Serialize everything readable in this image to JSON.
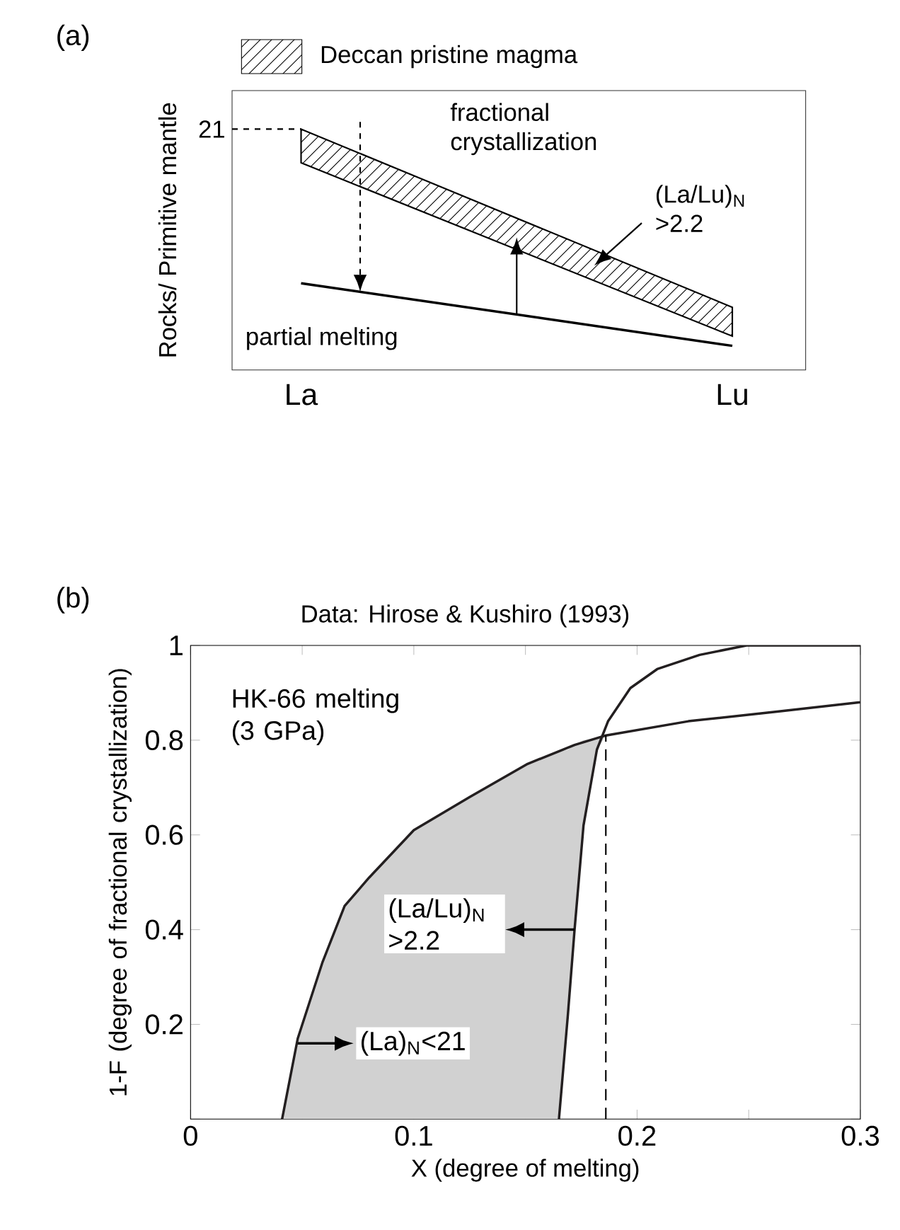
{
  "chart_data": [
    {
      "type": "other",
      "categories": [
        "La",
        "Lu"
      ],
      "ylabel": "Rocks/ Primitive mantle",
      "annotations": [
        "(a)",
        "Deccan pristine magma",
        "21",
        "fractional crystallization",
        "(La/Lu)$_{N}$ >2.2",
        "partial melting"
      ]
    },
    {
      "type": "line",
      "title": "Data: Hirose & Kushiro (1993)",
      "xlabel": "X (degree of melting)",
      "ylabel": "1-F (degree of fractional crystallization)",
      "xlim": [
        0,
        0.3
      ],
      "ylim": [
        0,
        1
      ],
      "xticks": [
        0,
        {
          "value": 0.05,
          "label": null
        },
        0.1,
        {
          "value": 0.15,
          "label": null
        },
        0.2,
        {
          "value": 0.25,
          "label": null
        },
        0.3
      ],
      "yticks": [
        {
          "value": 0,
          "label": null
        },
        0.2,
        0.4,
        0.6,
        0.8,
        1
      ],
      "series": [
        {
          "color": "#231f20",
          "x": [
            0.041,
            0.048,
            0.059,
            0.069,
            0.08,
            0.1,
            0.125,
            0.151,
            0.172,
            0.186,
            0.223,
            0.262,
            0.3
          ],
          "values": [
            0,
            0.17,
            0.33,
            0.45,
            0.51,
            0.61,
            0.68,
            0.75,
            0.79,
            0.81,
            0.84,
            0.86,
            0.88
          ]
        },
        {
          "color": "#231f20",
          "x": [
            0.165,
            0.169,
            0.172,
            0.176,
            0.182,
            0.187,
            0.197,
            0.209,
            0.228,
            0.249,
            0.3
          ],
          "values": [
            0,
            0.22,
            0.4,
            0.62,
            0.78,
            0.84,
            0.91,
            0.95,
            0.98,
            1,
            1
          ]
        },
        {
          "type": "area",
          "color": "#d1d1d1",
          "x": [
            0.041,
            0.048,
            0.059,
            0.069,
            0.08,
            0.1,
            0.125,
            0.151,
            0.165,
            0.169,
            0.172,
            0.176,
            0.182,
            0.186
          ],
          "values": [
            null,
            null,
            null,
            null,
            null,
            null,
            null,
            null,
            null,
            null,
            null,
            null,
            null,
            null
          ],
          "upper": [
            0,
            0.17,
            0.33,
            0.45,
            0.51,
            0.61,
            0.68,
            0.75,
            0.775,
            0.78,
            0.79,
            0.8,
            0.805,
            0.81
          ],
          "lower": [
            0,
            0,
            0,
            0,
            0,
            0,
            0,
            0,
            0,
            0.22,
            0.4,
            0.62,
            0.78,
            0.81
          ]
        }
      ],
      "ref_lines": [
        {
          "axis": "x",
          "value": 0.186,
          "line_style": "dashed"
        }
      ],
      "annotations": [
        "(b)",
        "HK-66 melting (3 GPa)",
        "(La/Lu)$_{N}$ >2.2",
        {
          "text": "(La)$_{N}$<21",
          "x": 0.048,
          "y": 0.16
        }
      ]
    }
  ]
}
